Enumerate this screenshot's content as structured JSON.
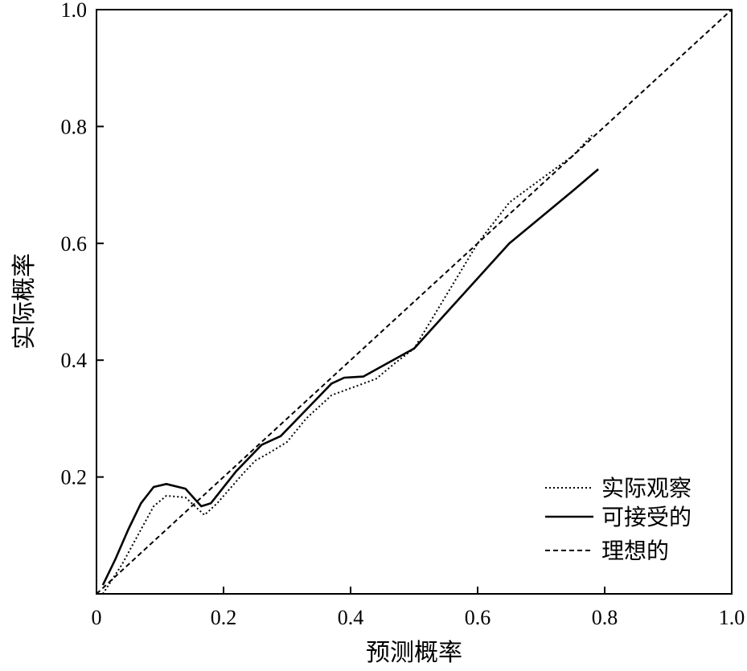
{
  "chart_data": {
    "type": "line",
    "title": "",
    "xlabel": "预测概率",
    "ylabel": "实际概率",
    "xlim": [
      0,
      1.0
    ],
    "ylim": [
      0,
      1.0
    ],
    "x_ticks": [
      {
        "value": 0,
        "label": "0"
      },
      {
        "value": 0.2,
        "label": "0.2"
      },
      {
        "value": 0.4,
        "label": "0.4"
      },
      {
        "value": 0.6,
        "label": "0.6"
      },
      {
        "value": 0.8,
        "label": "0.8"
      },
      {
        "value": 1.0,
        "label": "1.0"
      }
    ],
    "y_ticks": [
      {
        "value": 0.2,
        "label": "0.2"
      },
      {
        "value": 0.4,
        "label": "0.4"
      },
      {
        "value": 0.6,
        "label": "0.6"
      },
      {
        "value": 0.8,
        "label": "0.8"
      },
      {
        "value": 1.0,
        "label": "1.0"
      }
    ],
    "grid": false,
    "legend_position": "bottom-right",
    "series": [
      {
        "name": "实际观察",
        "style": "dotted",
        "color": "#000000",
        "points": [
          [
            0.01,
            0.0
          ],
          [
            0.04,
            0.05
          ],
          [
            0.07,
            0.11
          ],
          [
            0.09,
            0.15
          ],
          [
            0.11,
            0.168
          ],
          [
            0.14,
            0.165
          ],
          [
            0.17,
            0.135
          ],
          [
            0.19,
            0.155
          ],
          [
            0.23,
            0.205
          ],
          [
            0.25,
            0.228
          ],
          [
            0.27,
            0.24
          ],
          [
            0.3,
            0.26
          ],
          [
            0.33,
            0.3
          ],
          [
            0.37,
            0.34
          ],
          [
            0.4,
            0.352
          ],
          [
            0.44,
            0.368
          ],
          [
            0.47,
            0.395
          ],
          [
            0.5,
            0.42
          ],
          [
            0.55,
            0.51
          ],
          [
            0.6,
            0.6
          ],
          [
            0.65,
            0.67
          ],
          [
            0.7,
            0.71
          ],
          [
            0.75,
            0.75
          ],
          [
            0.78,
            0.785
          ]
        ]
      },
      {
        "name": "可接受的",
        "style": "solid",
        "color": "#000000",
        "points": [
          [
            0.01,
            0.015
          ],
          [
            0.03,
            0.06
          ],
          [
            0.05,
            0.11
          ],
          [
            0.07,
            0.155
          ],
          [
            0.09,
            0.183
          ],
          [
            0.11,
            0.188
          ],
          [
            0.14,
            0.18
          ],
          [
            0.165,
            0.15
          ],
          [
            0.18,
            0.155
          ],
          [
            0.22,
            0.21
          ],
          [
            0.26,
            0.255
          ],
          [
            0.29,
            0.27
          ],
          [
            0.33,
            0.315
          ],
          [
            0.37,
            0.36
          ],
          [
            0.39,
            0.37
          ],
          [
            0.42,
            0.372
          ],
          [
            0.45,
            0.39
          ],
          [
            0.5,
            0.42
          ],
          [
            0.55,
            0.48
          ],
          [
            0.6,
            0.54
          ],
          [
            0.65,
            0.6
          ],
          [
            0.7,
            0.645
          ],
          [
            0.75,
            0.69
          ],
          [
            0.79,
            0.727
          ]
        ]
      },
      {
        "name": "理想的",
        "style": "dashed",
        "color": "#000000",
        "points": [
          [
            0.0,
            0.0
          ],
          [
            1.0,
            1.0
          ]
        ]
      }
    ]
  }
}
